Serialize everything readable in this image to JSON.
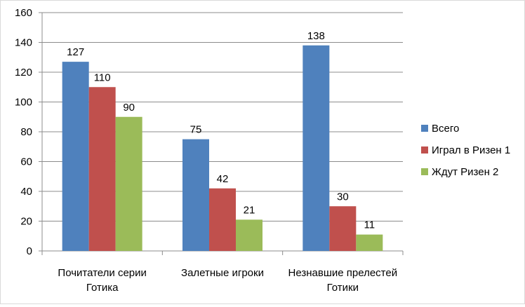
{
  "chart_data": {
    "type": "bar",
    "categories": [
      [
        "Почитатели серии",
        "Готика"
      ],
      [
        "Залетные игроки"
      ],
      [
        "Незнавшие прелестей",
        "Готики"
      ]
    ],
    "series": [
      {
        "name": "Всего",
        "color": "#4f81bd",
        "values": [
          127,
          75,
          138
        ]
      },
      {
        "name": "Играл в Ризен 1",
        "color": "#c0504d",
        "values": [
          110,
          42,
          30
        ]
      },
      {
        "name": "Ждут Ризен 2",
        "color": "#9bbb59",
        "values": [
          90,
          21,
          11
        ]
      }
    ],
    "ylim": [
      0,
      160
    ],
    "yticks": [
      0,
      20,
      40,
      60,
      80,
      100,
      120,
      140,
      160
    ],
    "grid": true,
    "legend_position": "right",
    "data_labels": true
  }
}
